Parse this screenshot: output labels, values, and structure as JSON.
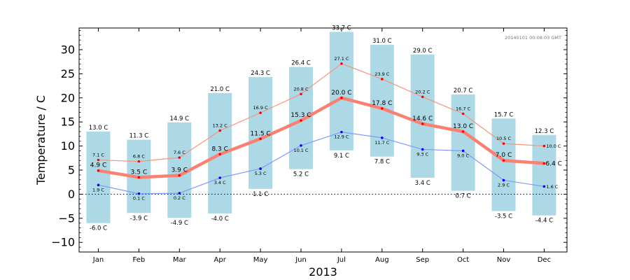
{
  "chart_data": {
    "type": "bar",
    "xlabel": "2013",
    "ylabel": "Temperature / C",
    "timestamp": "20140101 00:08:03 GMT",
    "ylim": [
      -12,
      34.5
    ],
    "yticks": [
      -10,
      -5,
      0,
      5,
      10,
      15,
      20,
      25,
      30
    ],
    "categories": [
      "Jan",
      "Feb",
      "Mar",
      "Apr",
      "May",
      "Jun",
      "Jul",
      "Aug",
      "Sep",
      "Oct",
      "Nov",
      "Dec"
    ],
    "range_max": [
      13.0,
      11.3,
      14.9,
      21.0,
      24.3,
      26.4,
      33.7,
      31.0,
      29.0,
      20.7,
      15.7,
      12.3
    ],
    "range_min": [
      -6.0,
      -3.9,
      -4.9,
      -4.0,
      1.1,
      5.2,
      9.1,
      7.8,
      3.4,
      0.7,
      -3.5,
      -4.4
    ],
    "range_max_labels": [
      "13.0 C",
      "11.3 C",
      "14.9 C",
      "21.0 C",
      "24.3 C",
      "26.4 C",
      "33.7 C",
      "31.0 C",
      "29.0 C",
      "20.7 C",
      "15.7 C",
      "12.3 C"
    ],
    "range_min_labels": [
      "-6.0 C",
      "-3.9 C",
      "-4.9 C",
      "-4.0 C",
      "1.1 C",
      "5.2 C",
      "9.1 C",
      "7.8 C",
      "3.4 C",
      "0.7 C",
      "-3.5 C",
      "-4.4 C"
    ],
    "series": [
      {
        "key": "mean_max",
        "values": [
          7.1,
          6.8,
          7.6,
          13.2,
          16.9,
          20.8,
          27.1,
          23.9,
          20.2,
          16.7,
          10.5,
          10.0
        ],
        "labels": [
          "7.1 C",
          "6.8 C",
          "7.6 C",
          "13.2 C",
          "16.9 C",
          "20.8 C",
          "27.1 C",
          "23.9 C",
          "20.2 C",
          "16.7 C",
          "10.5 C",
          "10.0 C"
        ],
        "color": "#f4967a"
      },
      {
        "key": "mean",
        "values": [
          4.9,
          3.5,
          3.9,
          8.3,
          11.5,
          15.3,
          20.0,
          17.8,
          14.6,
          13.0,
          7.0,
          6.4
        ],
        "labels": [
          "4.9 C",
          "3.5 C",
          "3.9 C",
          "8.3 C",
          "11.5 C",
          "15.3 C",
          "20.0 C",
          "17.8 C",
          "14.6 C",
          "13.0 C",
          "7.0 C",
          "6.4 C"
        ],
        "color": "#fa8072"
      },
      {
        "key": "mean_min",
        "values": [
          1.9,
          0.1,
          0.2,
          3.4,
          5.3,
          10.1,
          12.9,
          11.7,
          9.3,
          9.0,
          2.9,
          1.6
        ],
        "labels": [
          "1.9 C",
          "0.1 C",
          "0.2 C",
          "3.4 C",
          "5.3 C",
          "10.1 C",
          "12.9 C",
          "11.7 C",
          "9.3 C",
          "9.0 C",
          "2.9 C",
          "1.6 C"
        ],
        "color": "#7b9cf5"
      }
    ],
    "colors": {
      "range_bar": "#add8e6",
      "point": "#ff0000",
      "point_min": "#0000ff",
      "zero_line": "#0000cc"
    },
    "grid": false
  }
}
